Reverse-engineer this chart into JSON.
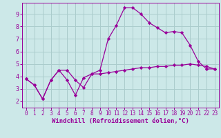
{
  "title": "",
  "xlabel": "Windchill (Refroidissement éolien,°C)",
  "ylabel": "",
  "background_color": "#cce8e8",
  "grid_color": "#aacccc",
  "line_color": "#990099",
  "x_series1": [
    0,
    1,
    2,
    3,
    4,
    5,
    6,
    7,
    8,
    9,
    10,
    11,
    12,
    13,
    14,
    15,
    16,
    17,
    18,
    19,
    20,
    21,
    22,
    23
  ],
  "y_series1": [
    3.8,
    3.3,
    2.2,
    3.7,
    4.5,
    4.5,
    3.7,
    3.1,
    4.2,
    4.5,
    7.0,
    8.1,
    9.5,
    9.5,
    9.0,
    8.3,
    7.9,
    7.5,
    7.6,
    7.5,
    6.5,
    5.2,
    4.6,
    4.6
  ],
  "x_series2": [
    0,
    1,
    2,
    3,
    4,
    5,
    6,
    7,
    8,
    9,
    10,
    11,
    12,
    13,
    14,
    15,
    16,
    17,
    18,
    19,
    20,
    21,
    22,
    23
  ],
  "y_series2": [
    3.8,
    3.3,
    2.2,
    3.7,
    4.5,
    3.7,
    2.5,
    3.9,
    4.2,
    4.2,
    4.3,
    4.4,
    4.5,
    4.6,
    4.7,
    4.7,
    4.8,
    4.8,
    4.9,
    4.9,
    5.0,
    4.9,
    4.8,
    4.6
  ],
  "ylim": [
    1.5,
    9.9
  ],
  "xlim": [
    -0.5,
    23.5
  ],
  "yticks": [
    2,
    3,
    4,
    5,
    6,
    7,
    8,
    9
  ],
  "xticks": [
    0,
    1,
    2,
    3,
    4,
    5,
    6,
    7,
    8,
    9,
    10,
    11,
    12,
    13,
    14,
    15,
    16,
    17,
    18,
    19,
    20,
    21,
    22,
    23
  ],
  "marker": "D",
  "marker_size": 2.2,
  "linewidth": 0.9,
  "tick_fontsize": 6.0,
  "xlabel_fontsize": 6.5
}
